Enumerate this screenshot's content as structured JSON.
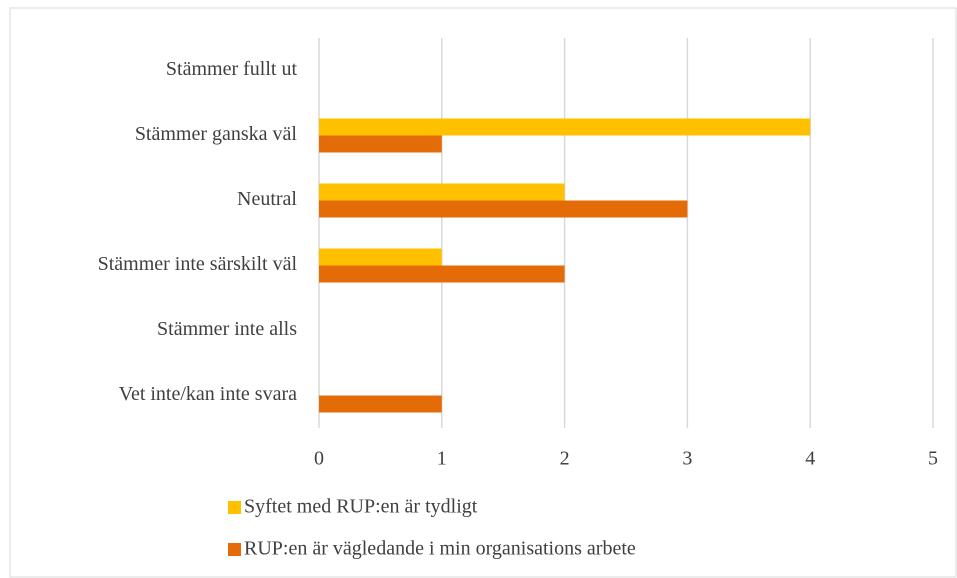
{
  "chart_data": {
    "type": "hbar",
    "categories": [
      "Stämmer fullt ut",
      "Stämmer ganska väl",
      "Neutral",
      "Stämmer inte särskilt väl",
      "Stämmer inte alls",
      "Vet inte/kan inte svara"
    ],
    "series": [
      {
        "name": "Syftet med RUP:en är tydligt",
        "color": "#ffc000",
        "values": [
          0,
          4,
          2,
          1,
          0,
          0
        ]
      },
      {
        "name": "RUP:en är vägledande i min organisations arbete",
        "color": "#e36c09",
        "values": [
          0,
          1,
          3,
          2,
          0,
          1
        ]
      }
    ],
    "xlim": [
      0,
      5
    ],
    "xticks": [
      0,
      1,
      2,
      3,
      4,
      5
    ],
    "grid": true,
    "legend": "bottom"
  }
}
